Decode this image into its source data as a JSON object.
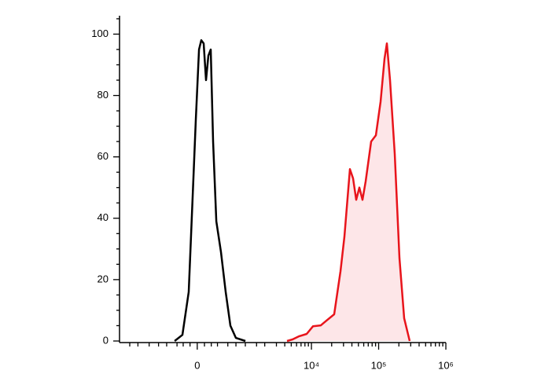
{
  "chart_data": {
    "type": "line",
    "xscale": "arcsinh",
    "xlim": [
      -2000,
      1000000
    ],
    "ylim": [
      0,
      106
    ],
    "xticks": [
      {
        "value": 0,
        "label": "0"
      },
      {
        "value": 10000,
        "label": "10⁴"
      },
      {
        "value": 100000,
        "label": "10⁵"
      },
      {
        "value": 1000000,
        "label": "10⁶"
      }
    ],
    "xminorticks": [
      -2000,
      -1500,
      -1000,
      -700,
      -500,
      -300,
      -200,
      -100,
      100,
      200,
      300,
      500,
      700,
      1000,
      1500,
      2000,
      3000,
      4000,
      5000,
      6000,
      7000,
      8000,
      9000,
      20000,
      30000,
      40000,
      50000,
      60000,
      70000,
      80000,
      90000,
      200000,
      300000,
      400000,
      500000,
      600000,
      700000,
      800000,
      900000
    ],
    "yticks": [
      0,
      20,
      40,
      60,
      80,
      100
    ],
    "yminorticks": [
      5,
      10,
      15,
      25,
      30,
      35,
      45,
      50,
      55,
      65,
      70,
      75,
      85,
      90,
      95,
      105
    ],
    "series": [
      {
        "color": "#000000",
        "x": [
          -342,
          -212,
          -118,
          -63,
          -20,
          24,
          56,
          89,
          122,
          156,
          192,
          228,
          280,
          362,
          455,
          558,
          698,
          1002
        ],
        "values": [
          0,
          2,
          16,
          47,
          72,
          95,
          98,
          97,
          85,
          93,
          95,
          65,
          39,
          29,
          16,
          5,
          1,
          0
        ]
      },
      {
        "color": "#e8141b",
        "fill": "#fde6e8",
        "x": [
          4324,
          5225,
          6485,
          8491,
          10537,
          13797,
          16676,
          21820,
          27060,
          30960,
          37400,
          41620,
          46360,
          51640,
          57540,
          64040,
          77360,
          90960,
          106840,
          122260,
          132580,
          147600,
          173540,
          204000,
          239800,
          289800
        ],
        "values": [
          0,
          0.5,
          1.5,
          2.3,
          4.8,
          5.1,
          6.6,
          8.7,
          22.7,
          34,
          56,
          53,
          46,
          50,
          46,
          52,
          65,
          67,
          78,
          92,
          97,
          85,
          61,
          27,
          7.4,
          0
        ]
      }
    ]
  }
}
